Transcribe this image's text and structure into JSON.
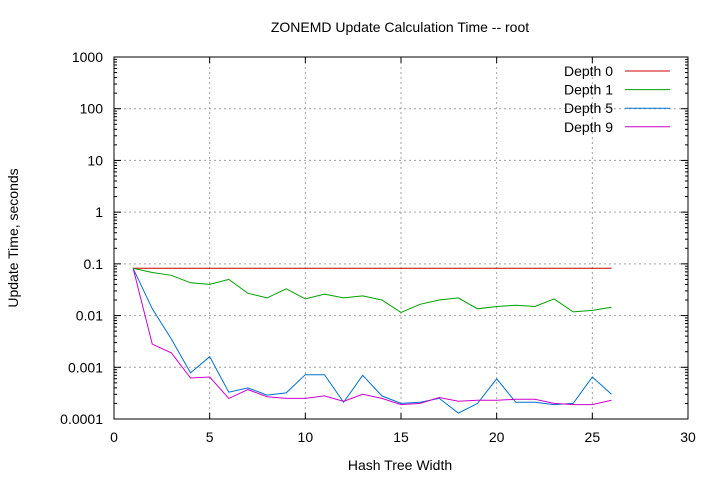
{
  "chart_data": {
    "type": "line",
    "title": "ZONEMD Update Calculation Time -- root",
    "xlabel": "Hash Tree Width",
    "ylabel": "Update Time, seconds",
    "xlim": [
      0,
      30
    ],
    "ylim": [
      0.0001,
      1000
    ],
    "yscale": "log",
    "grid": true,
    "legend_position": "top-right",
    "xticks": [
      0,
      5,
      10,
      15,
      20,
      25,
      30
    ],
    "xtick_labels": [
      "0",
      "5",
      "10",
      "15",
      "20",
      "25",
      "30"
    ],
    "yticks": [
      0.0001,
      0.001,
      0.01,
      0.1,
      1,
      10,
      100,
      1000
    ],
    "ytick_labels": [
      "0.0001",
      "0.001",
      "0.01",
      "0.1",
      "1",
      "10",
      "100",
      "1000"
    ],
    "x": [
      1,
      2,
      3,
      4,
      5,
      6,
      7,
      8,
      9,
      10,
      11,
      12,
      13,
      14,
      15,
      16,
      17,
      18,
      19,
      20,
      21,
      22,
      23,
      24,
      25,
      26
    ],
    "series": [
      {
        "name": "Depth 0",
        "color": "#cc0000",
        "values": [
          0.082,
          0.082,
          0.082,
          0.082,
          0.082,
          0.082,
          0.082,
          0.082,
          0.082,
          0.082,
          0.082,
          0.082,
          0.082,
          0.082,
          0.082,
          0.082,
          0.082,
          0.082,
          0.082,
          0.082,
          0.082,
          0.082,
          0.082,
          0.082,
          0.082,
          0.082
        ]
      },
      {
        "name": "Depth 1",
        "color": "#00a000",
        "values": [
          0.082,
          0.068,
          0.06,
          0.043,
          0.04,
          0.05,
          0.027,
          0.022,
          0.033,
          0.021,
          0.026,
          0.022,
          0.024,
          0.02,
          0.0115,
          0.0165,
          0.02,
          0.022,
          0.0135,
          0.015,
          0.0158,
          0.015,
          0.021,
          0.0118,
          0.0126,
          0.0145
        ]
      },
      {
        "name": "Depth 5",
        "color": "#0070cc",
        "values": [
          0.082,
          0.0135,
          0.0035,
          0.00078,
          0.0016,
          0.00033,
          0.0004,
          0.00029,
          0.00032,
          0.00072,
          0.00072,
          0.00021,
          0.0007,
          0.00028,
          0.0002,
          0.00021,
          0.00025,
          0.00013,
          0.0002,
          0.0006,
          0.00021,
          0.00021,
          0.00019,
          0.0002,
          0.00065,
          0.0003
        ]
      },
      {
        "name": "Depth 9",
        "color": "#cc00cc",
        "values": [
          0.082,
          0.0028,
          0.0019,
          0.00062,
          0.00065,
          0.00025,
          0.00037,
          0.00027,
          0.00025,
          0.00025,
          0.00028,
          0.00022,
          0.0003,
          0.00025,
          0.00019,
          0.0002,
          0.00026,
          0.00022,
          0.00023,
          0.00023,
          0.00024,
          0.00024,
          0.0002,
          0.00019,
          0.00019,
          0.00023
        ]
      }
    ]
  }
}
